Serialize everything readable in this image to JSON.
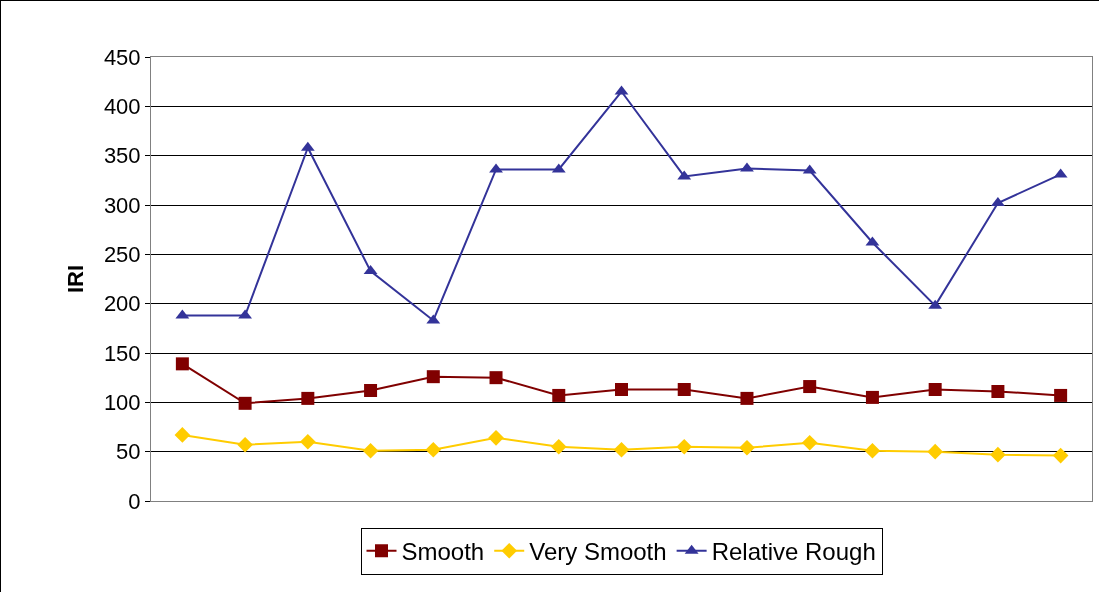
{
  "chart_data": {
    "type": "line",
    "ylabel": "IRI",
    "categories": [
      null,
      null,
      null,
      null,
      null,
      null,
      null,
      null,
      null,
      null,
      null,
      null,
      null,
      null,
      null
    ],
    "series": [
      {
        "name": "Smooth",
        "color": "#800000",
        "marker": "square",
        "values": [
          139,
          99,
          104,
          112,
          126,
          125,
          107,
          113,
          113,
          104,
          116,
          105,
          113,
          111,
          107
        ]
      },
      {
        "name": "Very Smooth",
        "color": "#ffcc00",
        "marker": "diamond",
        "values": [
          67,
          57,
          60,
          51,
          52,
          64,
          55,
          52,
          55,
          54,
          59,
          51,
          50,
          47,
          46
        ]
      },
      {
        "name": "Relative Rough",
        "color": "#333399",
        "marker": "triangle",
        "values": [
          188,
          188,
          358,
          233,
          183,
          336,
          336,
          415,
          329,
          337,
          335,
          262,
          198,
          302,
          331
        ]
      }
    ],
    "ylim": [
      0,
      450
    ],
    "yticks": [
      0,
      50,
      100,
      150,
      200,
      250,
      300,
      350,
      400,
      450
    ],
    "grid": "y",
    "legend": "bottom",
    "line_style": "solid"
  }
}
